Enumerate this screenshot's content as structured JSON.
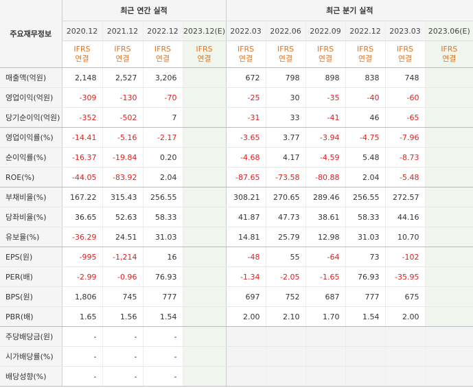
{
  "header": {
    "corner_label": "주요재무정보",
    "annual_title": "최근 연간 실적",
    "quarter_title": "최근 분기 실적",
    "annual_periods": [
      "2020.12",
      "2021.12",
      "2022.12",
      "2023.12(E)"
    ],
    "quarter_periods": [
      "2022.03",
      "2022.06",
      "2022.09",
      "2022.12",
      "2023.03",
      "2023.06(E)"
    ],
    "ifrs_line1": "IFRS",
    "ifrs_line2": "연결"
  },
  "rows": [
    {
      "label": "매출액(억원)",
      "annual": [
        "2,148",
        "2,527",
        "3,206",
        ""
      ],
      "quarter": [
        "672",
        "798",
        "898",
        "838",
        "748",
        ""
      ]
    },
    {
      "label": "영업이익(억원)",
      "annual": [
        "-309",
        "-130",
        "-70",
        ""
      ],
      "quarter": [
        "-25",
        "30",
        "-35",
        "-40",
        "-60",
        ""
      ]
    },
    {
      "label": "당기순이익(억원)",
      "annual": [
        "-352",
        "-502",
        "7",
        ""
      ],
      "quarter": [
        "-31",
        "33",
        "-41",
        "46",
        "-65",
        ""
      ]
    },
    {
      "label": "영업이익률(%)",
      "annual": [
        "-14.41",
        "-5.16",
        "-2.17",
        ""
      ],
      "quarter": [
        "-3.65",
        "3.77",
        "-3.94",
        "-4.75",
        "-7.96",
        ""
      ]
    },
    {
      "label": "순이익률(%)",
      "annual": [
        "-16.37",
        "-19.84",
        "0.20",
        ""
      ],
      "quarter": [
        "-4.68",
        "4.17",
        "-4.59",
        "5.48",
        "-8.73",
        ""
      ]
    },
    {
      "label": "ROE(%)",
      "annual": [
        "-44.05",
        "-83.92",
        "2.04",
        ""
      ],
      "quarter": [
        "-87.65",
        "-73.58",
        "-80.88",
        "2.04",
        "-5.48",
        ""
      ]
    },
    {
      "label": "부채비율(%)",
      "annual": [
        "167.22",
        "315.43",
        "256.55",
        ""
      ],
      "quarter": [
        "308.21",
        "270.65",
        "289.46",
        "256.55",
        "272.57",
        ""
      ]
    },
    {
      "label": "당좌비율(%)",
      "annual": [
        "36.65",
        "52.63",
        "58.33",
        ""
      ],
      "quarter": [
        "41.87",
        "47.73",
        "38.61",
        "58.33",
        "44.16",
        ""
      ]
    },
    {
      "label": "유보율(%)",
      "annual": [
        "-36.29",
        "24.51",
        "31.03",
        ""
      ],
      "quarter": [
        "14.81",
        "25.79",
        "12.98",
        "31.03",
        "10.70",
        ""
      ]
    },
    {
      "label": "EPS(원)",
      "annual": [
        "-995",
        "-1,214",
        "16",
        ""
      ],
      "quarter": [
        "-48",
        "55",
        "-64",
        "73",
        "-102",
        ""
      ]
    },
    {
      "label": "PER(배)",
      "annual": [
        "-2.99",
        "-0.96",
        "76.93",
        ""
      ],
      "quarter": [
        "-1.34",
        "-2.05",
        "-1.65",
        "76.93",
        "-35.95",
        ""
      ]
    },
    {
      "label": "BPS(원)",
      "annual": [
        "1,806",
        "745",
        "777",
        ""
      ],
      "quarter": [
        "697",
        "752",
        "687",
        "777",
        "675",
        ""
      ]
    },
    {
      "label": "PBR(배)",
      "annual": [
        "1.65",
        "1.56",
        "1.54",
        ""
      ],
      "quarter": [
        "2.00",
        "2.10",
        "1.70",
        "1.54",
        "2.00",
        ""
      ]
    },
    {
      "label": "주당배당금(원)",
      "annual": [
        "-",
        "-",
        "-",
        ""
      ],
      "quarter": [
        "",
        "",
        "",
        "",
        "",
        ""
      ]
    },
    {
      "label": "시가배당률(%)",
      "annual": [
        "-",
        "-",
        "-",
        ""
      ],
      "quarter": [
        "",
        "",
        "",
        "",
        "",
        ""
      ]
    },
    {
      "label": "배당성향(%)",
      "annual": [
        "-",
        "-",
        "-",
        ""
      ],
      "quarter": [
        "",
        "",
        "",
        "",
        "",
        ""
      ]
    }
  ],
  "colors": {
    "negative": "#e11d1d",
    "ifrs": "#e4741e",
    "estimate_bg": "#f0f6ee"
  }
}
